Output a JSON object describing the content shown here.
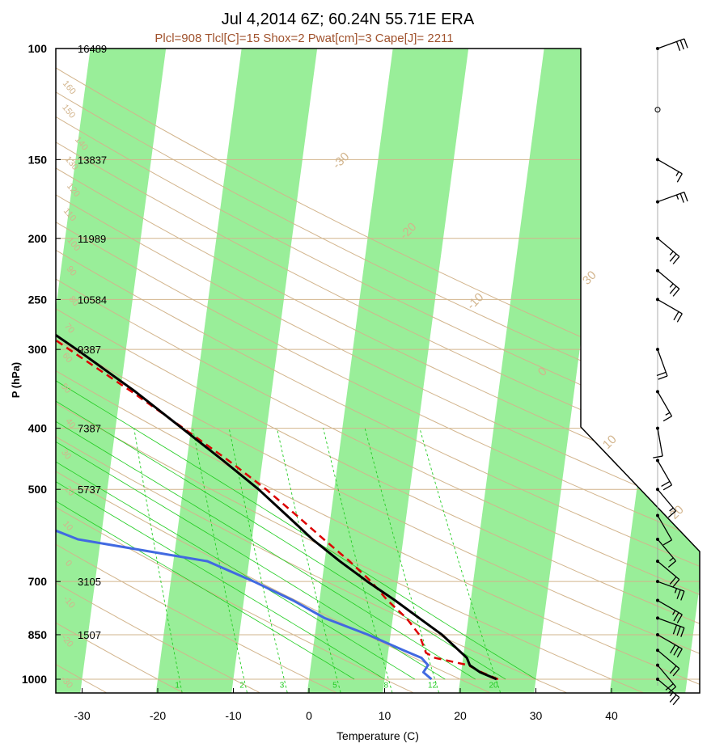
{
  "title": "Jul 4,2014 6Z; 60.24N 55.71E ERA",
  "subtitle": "Plcl=908 Tlcl[C]=15 Shox=2 Pwat[cm]=3 Cape[J]= 2211",
  "colors": {
    "dry_adiabat": "#d2b48c",
    "isotherm_band": "#99ee99",
    "mixing_ratio": "#22cc22",
    "temperature": "#000000",
    "dewpoint": "#4169e1",
    "parcel": "#dd0000",
    "subtitle": "#a0522d"
  },
  "chart_data": {
    "type": "skew-t",
    "xlabel": "Temperature (C)",
    "ylabel": "P (hPa)",
    "x_ticks": [
      "-30",
      "-20",
      "-10",
      "0",
      "10",
      "20",
      "30",
      "40"
    ],
    "x_tick_values": [
      -30,
      -20,
      -10,
      0,
      10,
      20,
      30,
      40
    ],
    "y_ticks": [
      "100",
      "150",
      "200",
      "250",
      "300",
      "400",
      "500",
      "700",
      "850",
      "1000"
    ],
    "y_tick_values": [
      100,
      150,
      200,
      250,
      300,
      400,
      500,
      700,
      850,
      1000
    ],
    "heights": [
      "16489",
      "13837",
      "11989",
      "10584",
      "9387",
      "7387",
      "5737",
      "3105",
      "1507"
    ],
    "height_pressures": [
      100,
      150,
      200,
      250,
      300,
      400,
      500,
      700,
      850
    ],
    "ylim": [
      100,
      1000
    ],
    "xlim": [
      -33,
      52
    ],
    "temperature": {
      "p": [
        1000,
        975,
        950,
        925,
        900,
        850,
        800,
        750,
        700,
        650,
        600,
        550,
        500,
        450,
        400,
        350,
        300,
        250,
        225,
        200,
        175,
        150,
        125,
        100
      ],
      "t": [
        24.8,
        22.5,
        21.0,
        20.5,
        19.3,
        16.8,
        13.5,
        10.0,
        6.0,
        2.0,
        -2.0,
        -5.8,
        -10.0,
        -15.2,
        -21.2,
        -28.0,
        -36.5,
        -47.0,
        -55.0,
        -57.5,
        -54.0,
        -51.5,
        -49.0,
        -52.0
      ]
    },
    "dewpoint": {
      "p": [
        1000,
        975,
        950,
        925,
        900,
        850,
        800,
        750,
        700,
        650,
        600,
        550,
        500,
        450,
        400,
        350,
        300,
        250,
        225,
        200,
        175,
        150,
        125,
        100
      ],
      "td": [
        16.2,
        15.0,
        15.5,
        14.5,
        12.0,
        7.0,
        1.0,
        -3.5,
        -9.0,
        -15.5,
        -33.0,
        -41.5,
        -48.0,
        -52.5,
        -58.5,
        -64.0,
        -74.0,
        -83.0,
        -88.0,
        -89.0,
        -90.5,
        -96.5,
        -94.0,
        -91.0
      ]
    },
    "parcel": {
      "p": [
        1000,
        975,
        950,
        925,
        908,
        850,
        800,
        750,
        700,
        650,
        600,
        550,
        500,
        450,
        400,
        350,
        300,
        250,
        225
      ],
      "t": [
        25.0,
        22.7,
        20.8,
        16.3,
        15.0,
        13.8,
        11.8,
        9.0,
        6.5,
        3.3,
        -0.5,
        -4.5,
        -9.0,
        -14.5,
        -21.0,
        -28.5,
        -37.5,
        -48.0,
        -56.0
      ]
    },
    "isotherm_labels": [
      "-30",
      "-20",
      "-10",
      "0",
      "10",
      "20",
      "30"
    ],
    "isotherm_label_values": [
      -30,
      -20,
      -10,
      0,
      10,
      20,
      30
    ],
    "dry_adiabat_labels": [
      "-30",
      "-20",
      "-10",
      "0",
      "10",
      "20",
      "30",
      "40",
      "50",
      "60",
      "70",
      "80",
      "90",
      "100",
      "110",
      "120",
      "130",
      "140",
      "150",
      "160"
    ],
    "dry_adiabat_values": [
      -30,
      -20,
      -10,
      0,
      10,
      20,
      30,
      40,
      50,
      60,
      70,
      80,
      90,
      100,
      110,
      120,
      130,
      140,
      150,
      160
    ],
    "moist_adiabat_labels": [
      "8",
      "12",
      "16",
      "20",
      "24",
      "28",
      "32"
    ],
    "moist_adiabat_values": [
      8,
      12,
      16,
      20,
      24,
      28,
      32
    ],
    "mixing_ratio_labels": [
      "1",
      "2",
      "3",
      "5",
      "8",
      "12",
      "20"
    ],
    "mixing_ratio_values": [
      1,
      2,
      3,
      5,
      8,
      12,
      20
    ],
    "wind_barbs": {
      "p": [
        100,
        125,
        150,
        175,
        200,
        225,
        250,
        300,
        350,
        400,
        450,
        500,
        550,
        600,
        650,
        700,
        750,
        800,
        850,
        900,
        950,
        1000
      ],
      "speed_kt": [
        30,
        0,
        15,
        25,
        25,
        25,
        20,
        20,
        15,
        10,
        20,
        15,
        10,
        15,
        20,
        25,
        25,
        30,
        30,
        20,
        20,
        25
      ],
      "direction_deg": [
        290,
        0,
        240,
        290,
        230,
        230,
        240,
        200,
        210,
        190,
        210,
        220,
        210,
        220,
        230,
        250,
        240,
        250,
        240,
        230,
        220,
        230
      ]
    }
  }
}
